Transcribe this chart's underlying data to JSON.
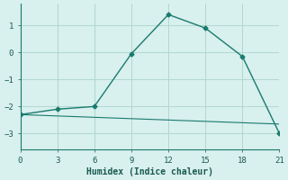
{
  "x": [
    0,
    3,
    6,
    9,
    12,
    15,
    18,
    21
  ],
  "y_curve": [
    -2.3,
    -2.1,
    -2.0,
    -0.05,
    1.4,
    0.9,
    -0.15,
    -3.0
  ],
  "y_line": [
    -2.3,
    -2.35,
    -2.4,
    -2.45,
    -2.5,
    -2.55,
    -2.6,
    -2.65
  ],
  "line_color": "#1a7a6e",
  "bg_color": "#d8f0ee",
  "grid_color": "#afd8d0",
  "xlabel": "Humidex (Indice chaleur)",
  "xticks": [
    0,
    3,
    6,
    9,
    12,
    15,
    18,
    21
  ],
  "yticks": [
    -3,
    -2,
    -1,
    0,
    1
  ],
  "xlim": [
    0,
    21
  ],
  "ylim": [
    -3.6,
    1.8
  ]
}
